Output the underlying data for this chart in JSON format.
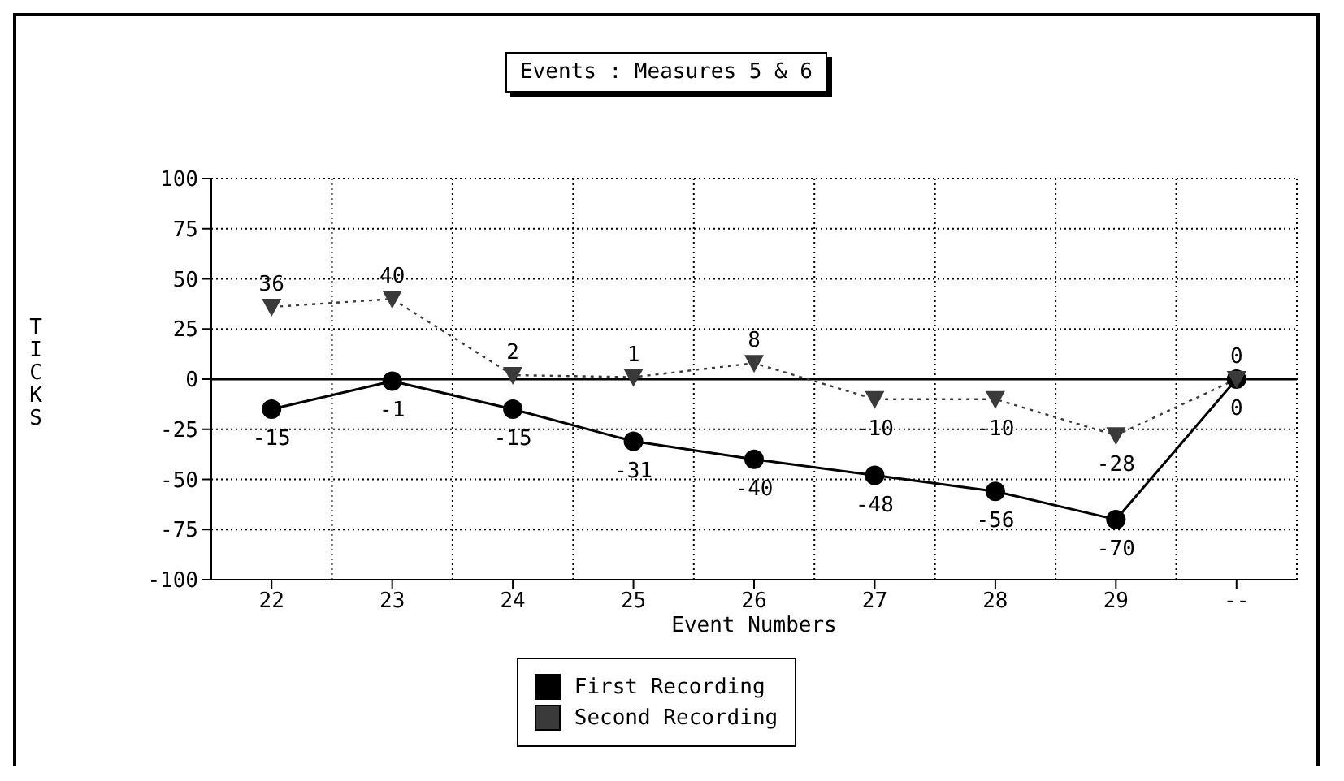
{
  "chart_data": {
    "type": "line",
    "title": "Events : Measures 5 & 6",
    "xlabel": "Event Numbers",
    "ylabel": "TICKS",
    "categories": [
      "22",
      "23",
      "24",
      "25",
      "26",
      "27",
      "28",
      "29",
      "--"
    ],
    "series": [
      {
        "name": "First Recording",
        "color": "#000000",
        "marker": "circle",
        "line_style": "solid",
        "values": [
          -15,
          -1,
          -15,
          -31,
          -40,
          -48,
          -56,
          -70,
          0
        ]
      },
      {
        "name": "Second Recording",
        "color": "#3a3a3a",
        "marker": "triangle",
        "line_style": "dotted",
        "values": [
          36,
          40,
          2,
          1,
          8,
          -10,
          -10,
          -28,
          0
        ]
      }
    ],
    "ylim": [
      -100,
      100
    ],
    "yticks": [
      -100,
      -75,
      -50,
      -25,
      0,
      25,
      50,
      75,
      100
    ],
    "ref_lines": [
      {
        "axis": "y",
        "value": 0
      }
    ],
    "grid": true,
    "data_labels": true,
    "legend": "bottom"
  }
}
